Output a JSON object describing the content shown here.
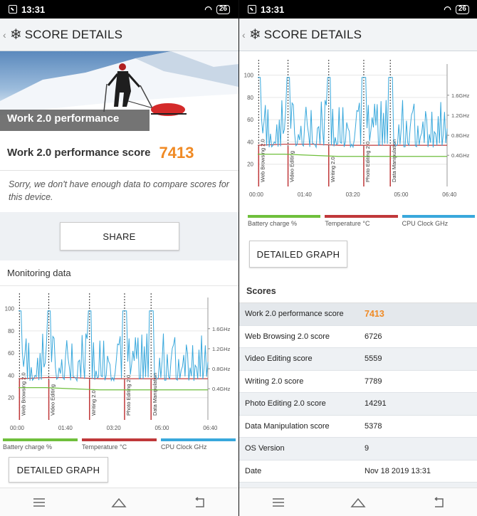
{
  "status": {
    "time": "13:31",
    "battery": "26"
  },
  "header": {
    "title": "SCORE DETAILS"
  },
  "hero": {
    "label": "Work 2.0 performance"
  },
  "score": {
    "label": "Work 2.0 performance score",
    "value": "7413"
  },
  "sorry_text": "Sorry, we don't have enough data to compare scores for this device.",
  "share_label": "SHARE",
  "monitoring_title": "Monitoring data",
  "detail_graph_label": "DETAILED GRAPH",
  "legend": [
    {
      "label": "Battery charge %",
      "color": "#6fbf3c"
    },
    {
      "label": "Temperature °C",
      "color": "#c0383a"
    },
    {
      "label": "CPU Clock GHz",
      "color": "#39a8dc"
    }
  ],
  "chart_data": {
    "type": "line",
    "y_left_ticks": [
      "100",
      "80",
      "60",
      "40",
      "20"
    ],
    "y_right_ticks": [
      "1.6GHz",
      "1.2GHz",
      "0.8GHz",
      "0.4GHz"
    ],
    "x_ticks": [
      "00:00",
      "01:40",
      "03:20",
      "05:00",
      "06:40"
    ],
    "markers": [
      "Web Browsing 2.0",
      "Video Editing",
      "Writing 2.0",
      "Photo Editing 2.0",
      "Data Manipulation"
    ],
    "ylim": [
      0,
      110
    ],
    "series": [
      {
        "name": "Battery charge %",
        "values": [
          29,
          29,
          28,
          27,
          27,
          27,
          27,
          27
        ]
      },
      {
        "name": "Temperature °C",
        "values": [
          37,
          38,
          38,
          37,
          37,
          37,
          37,
          37
        ]
      },
      {
        "name": "CPU Clock GHz",
        "values": [
          1.9,
          0.8,
          1.9,
          0.8,
          1.6,
          0.8,
          1.9,
          0.8
        ]
      }
    ]
  },
  "scores_title": "Scores",
  "scores": [
    {
      "label": "Work 2.0 performance score",
      "value": "7413"
    },
    {
      "label": "Web Browsing 2.0 score",
      "value": "6726"
    },
    {
      "label": "Video Editing score",
      "value": "5559"
    },
    {
      "label": "Writing 2.0 score",
      "value": "7789"
    },
    {
      "label": "Photo Editing 2.0 score",
      "value": "14291"
    },
    {
      "label": "Data Manipulation score",
      "value": "5378"
    },
    {
      "label": "OS Version",
      "value": "9"
    },
    {
      "label": "Date",
      "value": "Nov 18 2019 13:31"
    }
  ]
}
